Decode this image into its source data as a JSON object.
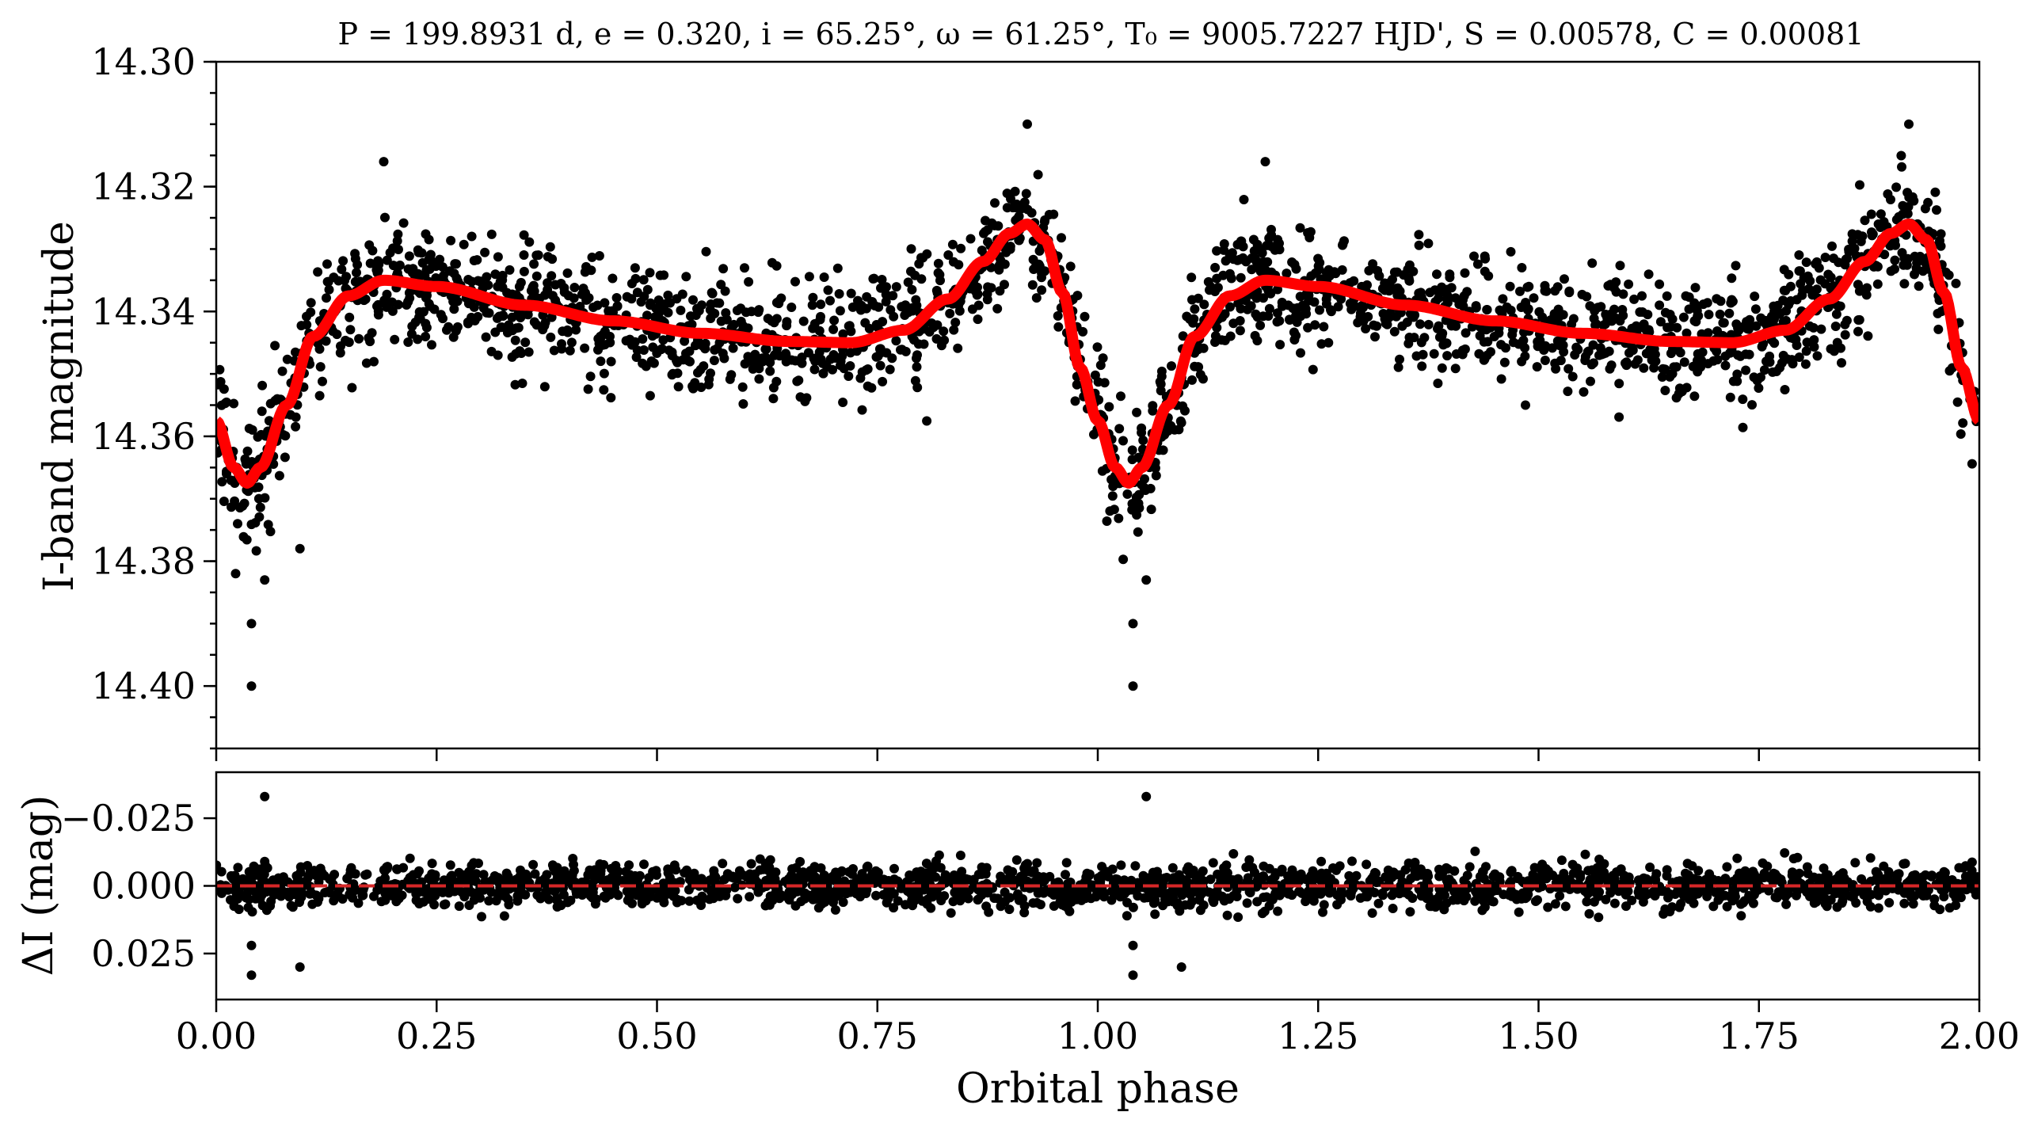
{
  "figure": {
    "title": "P = 199.8931 d, e = 0.320, i = 65.25°, ω = 61.25°, T₀ = 9005.7227 HJD', S = 0.00578, C = 0.00081"
  },
  "chart_data": [
    {
      "type": "scatter",
      "panel": "light-curve",
      "title": "P = 199.8931 d, e = 0.320, i = 65.25°, ω = 61.25°, T₀ = 9005.7227 HJD', S = 0.00578, C = 0.00081",
      "xlabel": "",
      "ylabel": "I-band magnitude",
      "xlim": [
        0.0,
        2.0
      ],
      "ylim": [
        14.41,
        14.3
      ],
      "y_inverted": true,
      "y_ticks": [
        "14.30",
        "14.32",
        "14.34",
        "14.36",
        "14.38",
        "14.40"
      ],
      "series": [
        {
          "kind": "scatter",
          "color": "#000000",
          "description_of_shape": "dense observed points phased twice",
          "model_x": [
            0.0,
            0.02,
            0.035,
            0.05,
            0.08,
            0.11,
            0.15,
            0.19,
            0.25,
            0.35,
            0.45,
            0.55,
            0.65,
            0.72,
            0.78,
            0.83,
            0.87,
            0.9,
            0.92,
            0.94,
            0.96,
            0.98,
            1.0,
            1.02,
            1.035,
            1.05,
            1.08,
            1.11,
            1.15,
            1.19,
            1.25,
            1.35,
            1.45,
            1.55,
            1.65,
            1.72,
            1.78,
            1.83,
            1.87,
            1.9,
            1.92,
            1.94,
            1.96,
            1.98,
            2.0
          ],
          "model_y": [
            14.3575,
            14.365,
            14.3675,
            14.365,
            14.355,
            14.344,
            14.3375,
            14.335,
            14.336,
            14.339,
            14.3415,
            14.3435,
            14.3448,
            14.345,
            14.343,
            14.338,
            14.332,
            14.3275,
            14.326,
            14.3285,
            14.337,
            14.349,
            14.3575,
            14.365,
            14.3675,
            14.365,
            14.355,
            14.344,
            14.3375,
            14.335,
            14.336,
            14.339,
            14.3415,
            14.3435,
            14.3448,
            14.345,
            14.343,
            14.338,
            14.332,
            14.3275,
            14.326,
            14.3285,
            14.337,
            14.349,
            14.3575
          ],
          "scatter_sigma": 0.0065,
          "outliers": [
            [
              0.04,
              14.39
            ],
            [
              0.04,
              14.4
            ],
            [
              0.055,
              14.383
            ],
            [
              0.095,
              14.378
            ],
            [
              0.022,
              14.382
            ],
            [
              1.04,
              14.39
            ],
            [
              1.04,
              14.4
            ],
            [
              1.055,
              14.383
            ],
            [
              0.92,
              14.31
            ],
            [
              1.92,
              14.31
            ],
            [
              0.19,
              14.316
            ],
            [
              1.19,
              14.316
            ]
          ]
        },
        {
          "kind": "line",
          "color": "#ff0000",
          "description_of_shape": "best-fit eccentric ellipsoidal model"
        }
      ]
    },
    {
      "type": "scatter",
      "panel": "residuals",
      "xlabel": "Orbital phase",
      "ylabel": "ΔI (mag)",
      "xlim": [
        0.0,
        2.0
      ],
      "ylim": [
        0.042,
        -0.042
      ],
      "y_inverted": true,
      "x_ticks": [
        "0.00",
        "0.25",
        "0.50",
        "0.75",
        "1.00",
        "1.25",
        "1.50",
        "1.75",
        "2.00"
      ],
      "y_ticks": [
        "−0.025",
        "0.000",
        "0.025"
      ],
      "series": [
        {
          "kind": "scatter",
          "color": "#000000",
          "scatter_sigma": 0.0055,
          "outliers": [
            [
              0.055,
              -0.033
            ],
            [
              1.055,
              -0.033
            ],
            [
              0.04,
              0.033
            ],
            [
              1.04,
              0.033
            ],
            [
              0.095,
              0.03
            ],
            [
              1.095,
              0.03
            ],
            [
              0.04,
              0.022
            ],
            [
              1.04,
              0.022
            ]
          ]
        },
        {
          "kind": "hline",
          "y": 0.0,
          "color": "#d62728",
          "style": "dashed"
        }
      ]
    }
  ],
  "colors": {
    "points": "#000000",
    "model": "#ff0000",
    "zero_line": "#d62728"
  }
}
